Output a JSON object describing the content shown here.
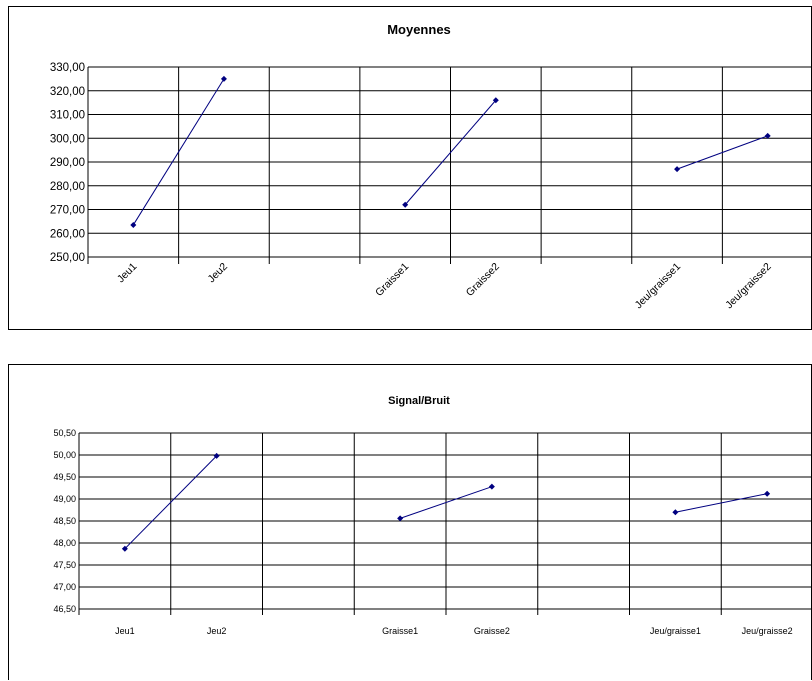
{
  "chart_data": [
    {
      "type": "line",
      "title": "Moyennes",
      "categories": [
        "Jeu1",
        "Jeu2",
        "",
        "Graisse1",
        "Graisse2",
        "",
        "Jeu/graisse1",
        "Jeu/graisse2"
      ],
      "ylim": [
        250,
        330
      ],
      "ystep": 10,
      "yticks": [
        "250,00",
        "260,00",
        "270,00",
        "280,00",
        "290,00",
        "300,00",
        "310,00",
        "320,00",
        "330,00"
      ],
      "series": [
        {
          "values": [
            263.5,
            325.0,
            null,
            null,
            null,
            null,
            null,
            null
          ]
        },
        {
          "values": [
            null,
            null,
            null,
            272.0,
            316.0,
            null,
            null,
            null
          ]
        },
        {
          "values": [
            null,
            null,
            null,
            null,
            null,
            null,
            287.0,
            301.0
          ]
        }
      ],
      "xlabel_rotated": true,
      "grid": true,
      "color": "#000080"
    },
    {
      "type": "line",
      "title": "Signal/Bruit",
      "categories": [
        "Jeu1",
        "Jeu2",
        "",
        "Graisse1",
        "Graisse2",
        "",
        "Jeu/graisse1",
        "Jeu/graisse2"
      ],
      "ylim": [
        46.5,
        50.5
      ],
      "ystep": 0.5,
      "yticks": [
        "46,50",
        "47,00",
        "47,50",
        "48,00",
        "48,50",
        "49,00",
        "49,50",
        "50,00",
        "50,50"
      ],
      "series": [
        {
          "values": [
            47.87,
            49.98,
            null,
            null,
            null,
            null,
            null,
            null
          ]
        },
        {
          "values": [
            null,
            null,
            null,
            48.56,
            49.28,
            null,
            null,
            null
          ]
        },
        {
          "values": [
            null,
            null,
            null,
            null,
            null,
            null,
            48.7,
            49.12
          ]
        }
      ],
      "xlabel_rotated": false,
      "grid": true,
      "color": "#000080"
    }
  ]
}
